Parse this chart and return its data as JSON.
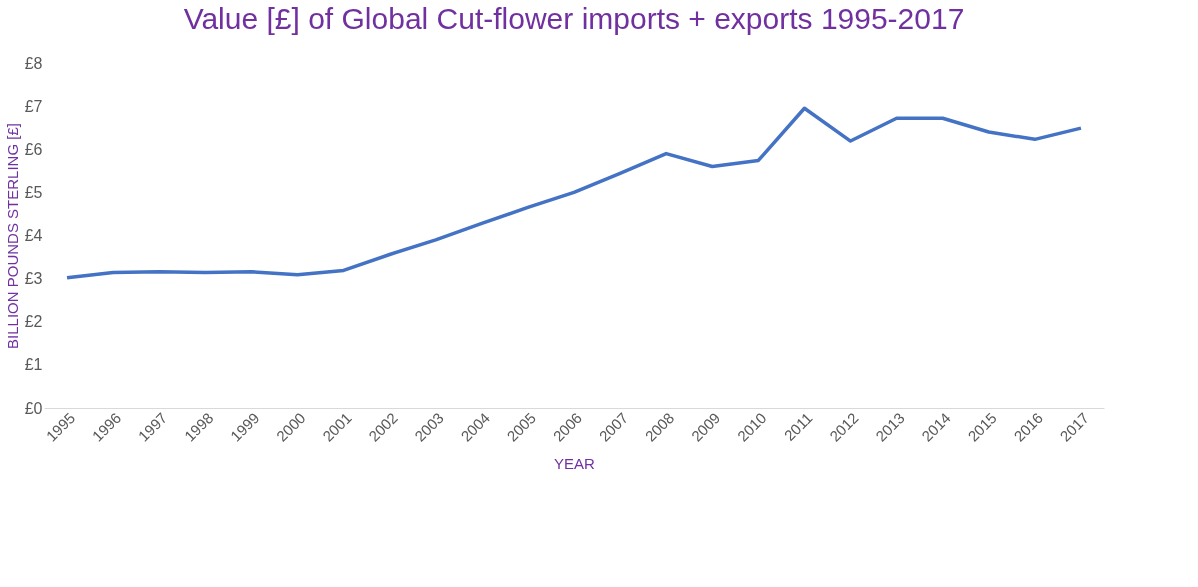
{
  "chart_data": {
    "type": "line",
    "title": "Value [£] of Global Cut-flower imports + exports 1995-2017",
    "xlabel": "YEAR",
    "ylabel": "BILLION POUNDS STERLING [£]",
    "categories": [
      "1995",
      "1996",
      "1997",
      "1998",
      "1999",
      "2000",
      "2001",
      "2002",
      "2003",
      "2004",
      "2005",
      "2006",
      "2007",
      "2008",
      "2009",
      "2010",
      "2011",
      "2012",
      "2013",
      "2014",
      "2015",
      "2016",
      "2017"
    ],
    "series": [
      {
        "color": "#4472c4",
        "values": [
          3.02,
          3.14,
          3.16,
          3.14,
          3.16,
          3.09,
          3.19,
          3.56,
          3.9,
          4.28,
          4.65,
          5.0,
          5.44,
          5.9,
          5.6,
          5.74,
          6.95,
          6.19,
          6.72,
          6.72,
          6.4,
          6.23,
          6.49
        ]
      }
    ],
    "ylim": [
      0,
      8
    ],
    "yticks": [
      {
        "value": 0,
        "label": "£0"
      },
      {
        "value": 1,
        "label": "£1"
      },
      {
        "value": 2,
        "label": "£2"
      },
      {
        "value": 3,
        "label": "£3"
      },
      {
        "value": 4,
        "label": "£4"
      },
      {
        "value": 5,
        "label": "£5"
      },
      {
        "value": 6,
        "label": "£6"
      },
      {
        "value": 7,
        "label": "£7"
      },
      {
        "value": 8,
        "label": "£8"
      }
    ],
    "grid": false,
    "marker": "none",
    "line_style": "solid"
  }
}
